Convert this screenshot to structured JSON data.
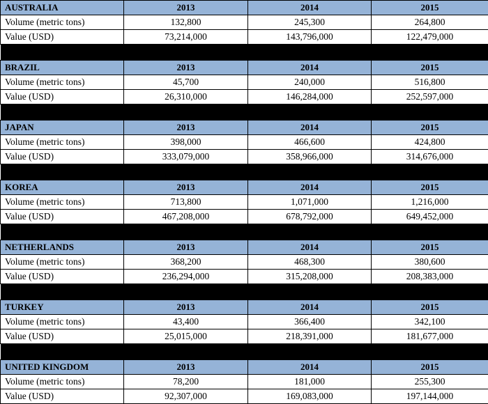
{
  "countries": [
    {
      "name": "AUSTRALIA",
      "years": [
        "2013",
        "2014",
        "2015"
      ],
      "volume_label": "Volume (metric tons)",
      "volume": [
        "132,800",
        "245,300",
        "264,800"
      ],
      "value_label": "Value (USD)",
      "value": [
        "73,214,000",
        "143,796,000",
        "122,479,000"
      ]
    },
    {
      "name": "BRAZIL",
      "years": [
        "2013",
        "2014",
        "2015"
      ],
      "volume_label": "Volume (metric tons)",
      "volume": [
        "45,700",
        "240,000",
        "516,800"
      ],
      "value_label": "Value (USD)",
      "value": [
        "26,310,000",
        "146,284,000",
        "252,597,000"
      ]
    },
    {
      "name": "JAPAN",
      "years": [
        "2013",
        "2014",
        "2015"
      ],
      "volume_label": "Volume (metric tons)",
      "volume": [
        "398,000",
        "466,600",
        "424,800"
      ],
      "value_label": "Value (USD)",
      "value": [
        "333,079,000",
        "358,966,000",
        "314,676,000"
      ]
    },
    {
      "name": "KOREA",
      "years": [
        "2013",
        "2014",
        "2015"
      ],
      "volume_label": "Volume (metric tons)",
      "volume": [
        "713,800",
        "1,071,000",
        "1,216,000"
      ],
      "value_label": "Value (USD)",
      "value": [
        "467,208,000",
        "678,792,000",
        "649,452,000"
      ]
    },
    {
      "name": "NETHERLANDS",
      "years": [
        "2013",
        "2014",
        "2015"
      ],
      "volume_label": "Volume (metric tons)",
      "volume": [
        "368,200",
        "468,300",
        "380,600"
      ],
      "value_label": "Value (USD)",
      "value": [
        "236,294,000",
        "315,208,000",
        "208,383,000"
      ]
    },
    {
      "name": "TURKEY",
      "years": [
        "2013",
        "2014",
        "2015"
      ],
      "volume_label": "Volume (metric tons)",
      "volume": [
        "43,400",
        "366,400",
        "342,100"
      ],
      "value_label": "Value (USD)",
      "value": [
        "25,015,000",
        "218,391,000",
        "181,677,000"
      ]
    },
    {
      "name": "UNITED KINGDOM",
      "years": [
        "2013",
        "2014",
        "2015"
      ],
      "volume_label": "Volume (metric tons)",
      "volume": [
        "78,200",
        "181,000",
        "255,300"
      ],
      "value_label": "Value (USD)",
      "value": [
        "92,307,000",
        "169,083,000",
        "197,144,000"
      ]
    }
  ]
}
